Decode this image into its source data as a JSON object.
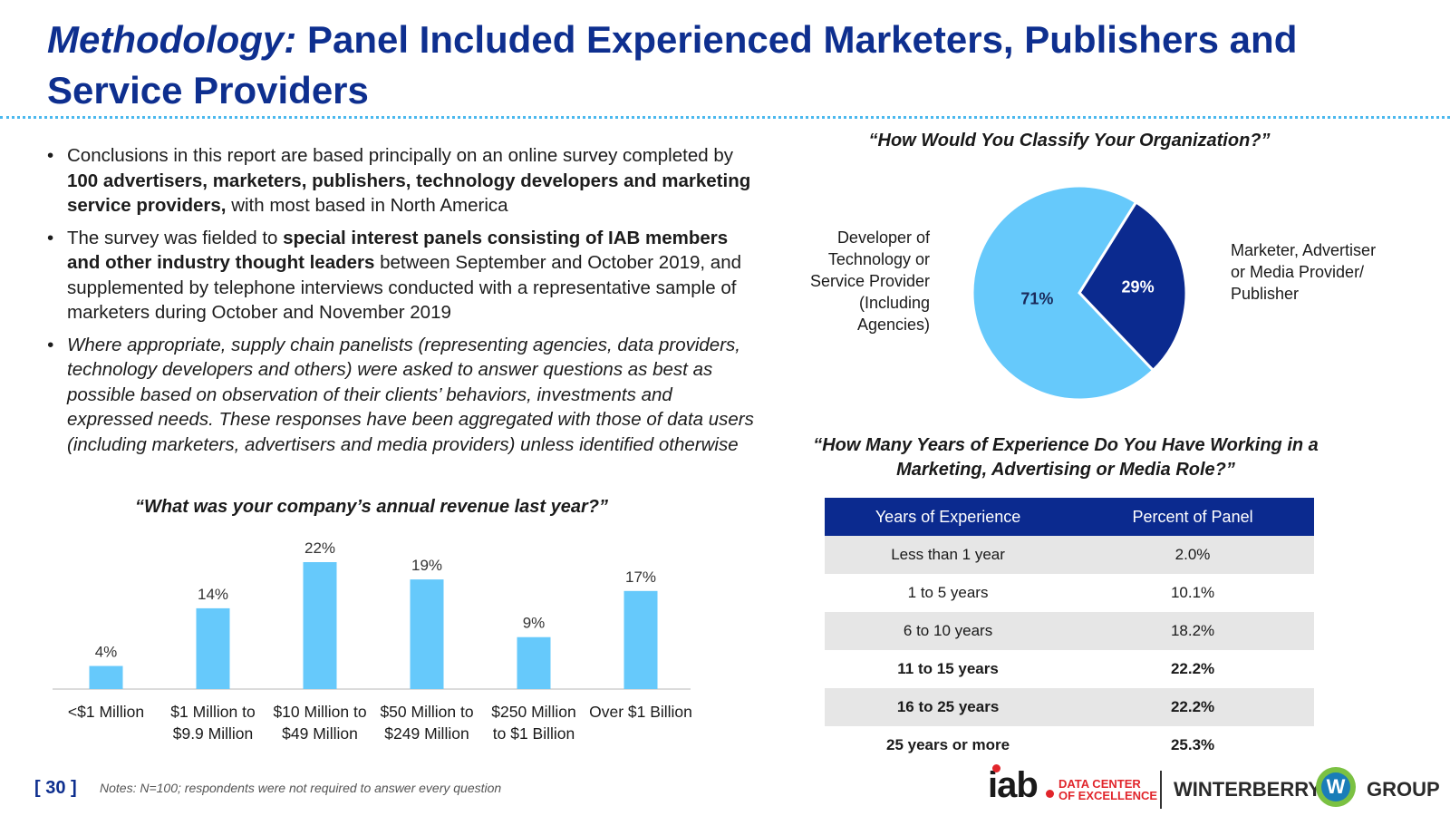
{
  "title": {
    "italic_part": "Methodology:",
    "main_part": "Panel Included Experienced Marketers, Publishers and Service Providers"
  },
  "bullets": [
    {
      "pre": "Conclusions in this report are based principally on an online survey completed by ",
      "bold": "100 advertisers, marketers, publishers, technology developers and marketing service providers,",
      "post": " with most based in North America"
    },
    {
      "pre": "The survey was fielded to ",
      "bold": "special interest panels consisting of IAB members and other industry thought leaders",
      "post": " between September and October 2019, and supplemented by telephone interviews conducted with a representative sample of marketers during October and November 2019"
    },
    {
      "text": "Where appropriate, supply chain panelists (representing agencies, data providers, technology developers and others) were asked to answer questions as best as possible based on observation of their clients’ behaviors, investments and expressed needs. These responses have been aggregated with those of data users (including marketers, advertisers and media providers) unless identified otherwise"
    }
  ],
  "revenue_question": "“What was your company’s annual revenue last year?”",
  "classify_question": "“How Would You Classify Your Organization?”",
  "experience_question": "“How Many  Years of Experience Do You Have Working in a Marketing, Advertising or Media Role?”",
  "pie": {
    "left_label": "Developer of Technology or Service Provider (Including Agencies)",
    "right_label": "Marketer, Advertiser or Media Provider/ Publisher"
  },
  "chart_data": [
    {
      "type": "bar",
      "title": "“What was your company’s annual revenue last year?”",
      "categories": [
        [
          "<$1 Million",
          ""
        ],
        [
          "$1 Million to",
          "$9.9 Million"
        ],
        [
          "$10 Million to",
          "$49 Million"
        ],
        [
          "$50 Million to",
          "$249 Million"
        ],
        [
          "$250 Million",
          "to $1 Billion"
        ],
        [
          "Over $1 Billion",
          ""
        ]
      ],
      "values": [
        4,
        14,
        22,
        19,
        9,
        17
      ],
      "value_labels": [
        "4%",
        "14%",
        "22%",
        "19%",
        "9%",
        "17%"
      ],
      "ylim": [
        0,
        25
      ],
      "color": "#66c9fb"
    },
    {
      "type": "pie",
      "title": "“How Would You Classify Your Organization?”",
      "labels": [
        "Developer of Technology or Service Provider (Including Agencies)",
        "Marketer, Advertiser or Media Provider/ Publisher"
      ],
      "values": [
        71,
        29
      ],
      "value_labels": [
        "71%",
        "29%"
      ],
      "colors": [
        "#66c9fb",
        "#0b2a8f"
      ]
    }
  ],
  "table": {
    "headers": [
      "Years of Experience",
      "Percent of Panel"
    ],
    "rows": [
      [
        "Less than 1 year",
        "2.0%"
      ],
      [
        "1 to 5 years",
        "10.1%"
      ],
      [
        "6 to 10 years",
        "18.2%"
      ],
      [
        "11 to 15 years",
        "22.2%"
      ],
      [
        "16 to 25 years",
        "22.2%"
      ],
      [
        "25 years or more",
        "25.3%"
      ]
    ]
  },
  "footer": {
    "page": "[ 30 ]",
    "notes": "Notes: N=100; respondents were not required to answer every question",
    "iab": "iab",
    "dce_line1": "DATA CENTER",
    "dce_line2": "OF EXCELLENCE",
    "winterberry": "WINTERBERRY",
    "w": "W",
    "group": "GROUP"
  }
}
